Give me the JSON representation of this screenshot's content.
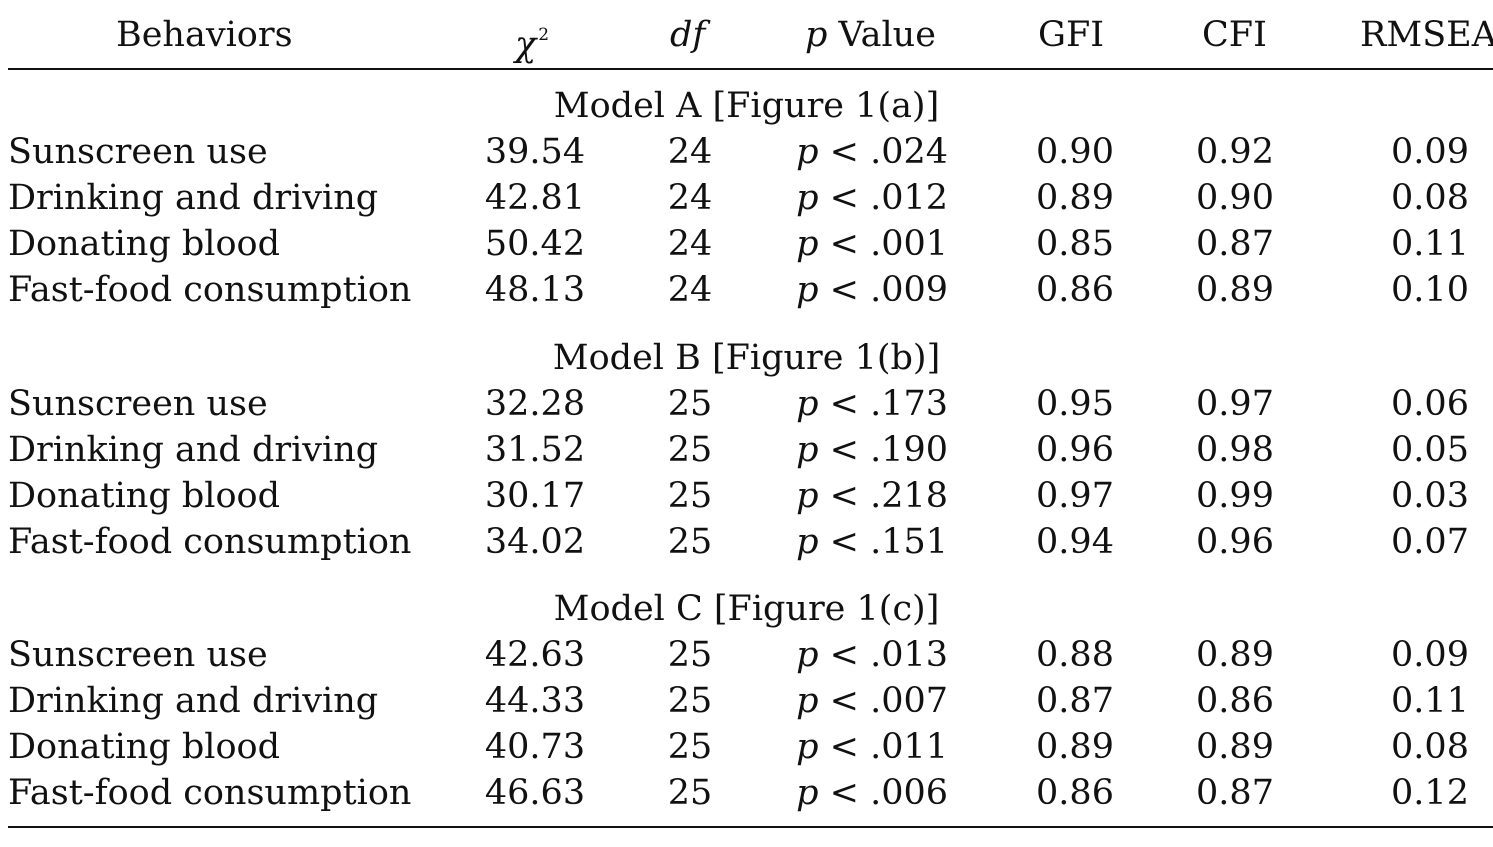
{
  "table": {
    "headers": {
      "behaviors": "Behaviors",
      "chi_symbol": "χ",
      "chi_sup": "2",
      "df": "df",
      "p_italic": "p",
      "p_value": " Value",
      "gfi": "GFI",
      "cfi": "CFI",
      "rmsea": "RMSEA"
    },
    "sections": [
      {
        "title": "Model A [Figure 1(a)]",
        "rows": [
          {
            "behavior": "Sunscreen use",
            "chi2": "39.54",
            "df": "24",
            "p_op": " < ",
            "p": ".024",
            "gfi": "0.90",
            "cfi": "0.92",
            "rmsea": "0.09"
          },
          {
            "behavior": "Drinking and driving",
            "chi2": "42.81",
            "df": "24",
            "p_op": " < ",
            "p": ".012",
            "gfi": "0.89",
            "cfi": "0.90",
            "rmsea": "0.08"
          },
          {
            "behavior": "Donating blood",
            "chi2": "50.42",
            "df": "24",
            "p_op": " < ",
            "p": ".001",
            "gfi": "0.85",
            "cfi": "0.87",
            "rmsea": "0.11"
          },
          {
            "behavior": "Fast-food consumption",
            "chi2": "48.13",
            "df": "24",
            "p_op": " < ",
            "p": ".009",
            "gfi": "0.86",
            "cfi": "0.89",
            "rmsea": "0.10"
          }
        ]
      },
      {
        "title": "Model B [Figure 1(b)]",
        "rows": [
          {
            "behavior": "Sunscreen use",
            "chi2": "32.28",
            "df": "25",
            "p_op": " < ",
            "p": ".173",
            "gfi": "0.95",
            "cfi": "0.97",
            "rmsea": "0.06"
          },
          {
            "behavior": "Drinking and driving",
            "chi2": "31.52",
            "df": "25",
            "p_op": " < ",
            "p": ".190",
            "gfi": "0.96",
            "cfi": "0.98",
            "rmsea": "0.05"
          },
          {
            "behavior": "Donating blood",
            "chi2": "30.17",
            "df": "25",
            "p_op": " < ",
            "p": ".218",
            "gfi": "0.97",
            "cfi": "0.99",
            "rmsea": "0.03"
          },
          {
            "behavior": "Fast-food consumption",
            "chi2": "34.02",
            "df": "25",
            "p_op": " < ",
            "p": ".151",
            "gfi": "0.94",
            "cfi": "0.96",
            "rmsea": "0.07"
          }
        ]
      },
      {
        "title": "Model C [Figure 1(c)]",
        "rows": [
          {
            "behavior": "Sunscreen use",
            "chi2": "42.63",
            "df": "25",
            "p_op": " < ",
            "p": ".013",
            "gfi": "0.88",
            "cfi": "0.89",
            "rmsea": "0.09"
          },
          {
            "behavior": "Drinking and driving",
            "chi2": "44.33",
            "df": "25",
            "p_op": " < ",
            "p": ".007",
            "gfi": "0.87",
            "cfi": "0.86",
            "rmsea": "0.11"
          },
          {
            "behavior": "Donating blood",
            "chi2": "40.73",
            "df": "25",
            "p_op": " < ",
            "p": ".011",
            "gfi": "0.89",
            "cfi": "0.89",
            "rmsea": "0.08"
          },
          {
            "behavior": "Fast-food consumption",
            "chi2": "46.63",
            "df": "25",
            "p_op": " < ",
            "p": ".006",
            "gfi": "0.86",
            "cfi": "0.87",
            "rmsea": "0.12"
          }
        ]
      }
    ]
  }
}
